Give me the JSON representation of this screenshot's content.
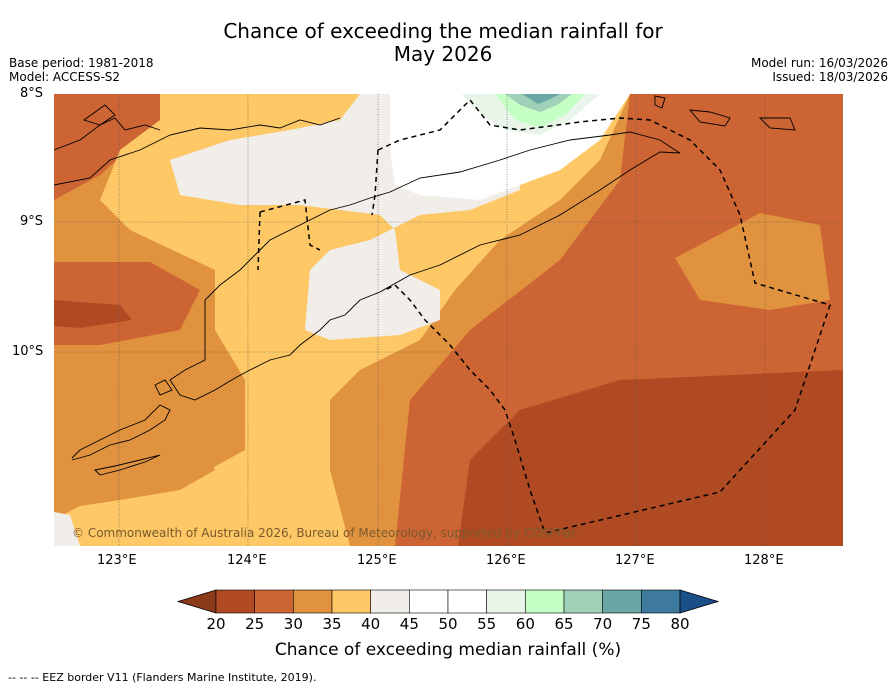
{
  "title_line1": "Chance of exceeding the median rainfall for",
  "title_line2": "May 2026",
  "base_period": "Base period: 1981-2018",
  "model": "Model: ACCESS-S2",
  "model_run": "Model run: 16/03/2026",
  "issued": "Issued: 18/03/2026",
  "lat_labels": [
    "8°S",
    "9°S",
    "10°S"
  ],
  "lon_labels": [
    "123°E",
    "124°E",
    "125°E",
    "126°E",
    "127°E",
    "128°E"
  ],
  "copyright": "© Commonwealth of Australia 2026, Bureau of Meteorology, supported by COSPPac",
  "colorbar": {
    "label": "Chance of exceeding median rainfall (%)",
    "ticks": [
      "20",
      "25",
      "30",
      "35",
      "40",
      "45",
      "50",
      "55",
      "60",
      "65",
      "70",
      "75",
      "80"
    ],
    "colors": [
      "#8b3a1a",
      "#b04a23",
      "#cd6433",
      "#e0923f",
      "#fdc865",
      "#f1ede8",
      "#ffffff",
      "#ffffff",
      "#e8f5e8",
      "#c6ffc6",
      "#9fd0b8",
      "#6aa6a6",
      "#3d7a9e",
      "#1a4f8a"
    ]
  },
  "footnote": "--  --  -- EEZ border V11 (Flanders Marine Institute, 2019)."
}
